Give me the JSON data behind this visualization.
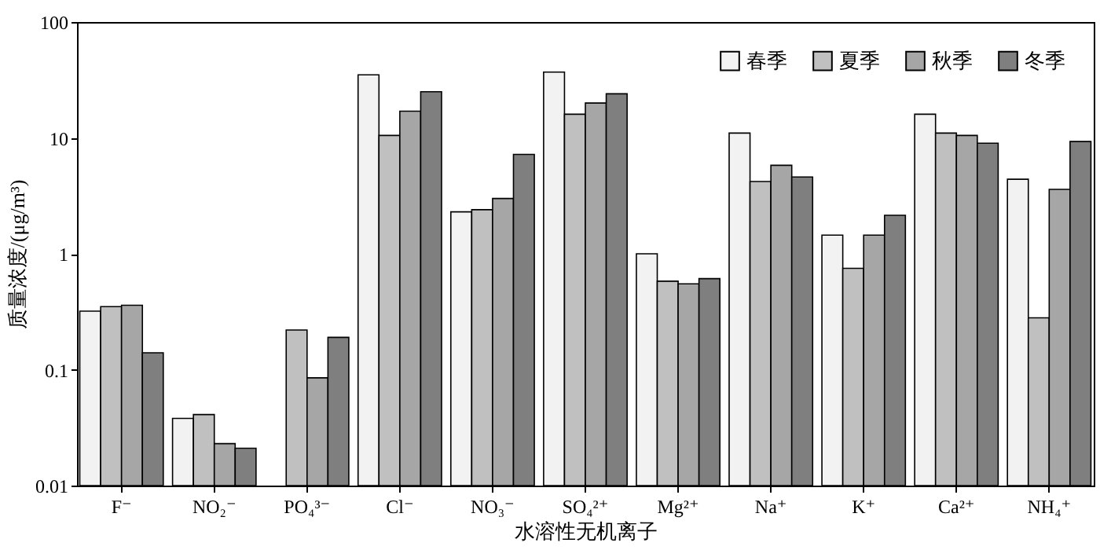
{
  "chart_data": {
    "type": "bar",
    "xlabel": "水溶性无机离子",
    "ylabel": "质量浓度/(μg/m³)",
    "categories": [
      "F⁻",
      "NO₂⁻",
      "PO₄³⁻",
      "Cl⁻",
      "NO₃⁻",
      "SO₄²⁺",
      "Mg²⁺",
      "Na⁺",
      "K⁺",
      "Ca²⁺",
      "NH₄⁺"
    ],
    "series": [
      {
        "name": "春季",
        "color": "#f2f2f2",
        "values": [
          0.32,
          0.038,
          null,
          35,
          2.3,
          37,
          1.0,
          11,
          1.45,
          16,
          4.4
        ]
      },
      {
        "name": "夏季",
        "color": "#c0c0c0",
        "values": [
          0.35,
          0.041,
          0.22,
          10.5,
          2.4,
          16,
          0.58,
          4.2,
          0.75,
          11,
          0.28
        ]
      },
      {
        "name": "秋季",
        "color": "#a6a6a6",
        "values": [
          0.36,
          0.023,
          0.085,
          17,
          3.0,
          20,
          0.55,
          5.8,
          1.45,
          10.5,
          3.6
        ]
      },
      {
        "name": "冬季",
        "color": "#7f7f7f",
        "values": [
          0.14,
          0.021,
          0.19,
          25,
          7.2,
          24,
          0.61,
          4.6,
          2.15,
          9,
          9.3
        ]
      }
    ],
    "log": "y",
    "ylim": [
      0.01,
      100
    ],
    "yticks": [
      0.01,
      0.1,
      1,
      10,
      100
    ],
    "legend": "top right"
  }
}
